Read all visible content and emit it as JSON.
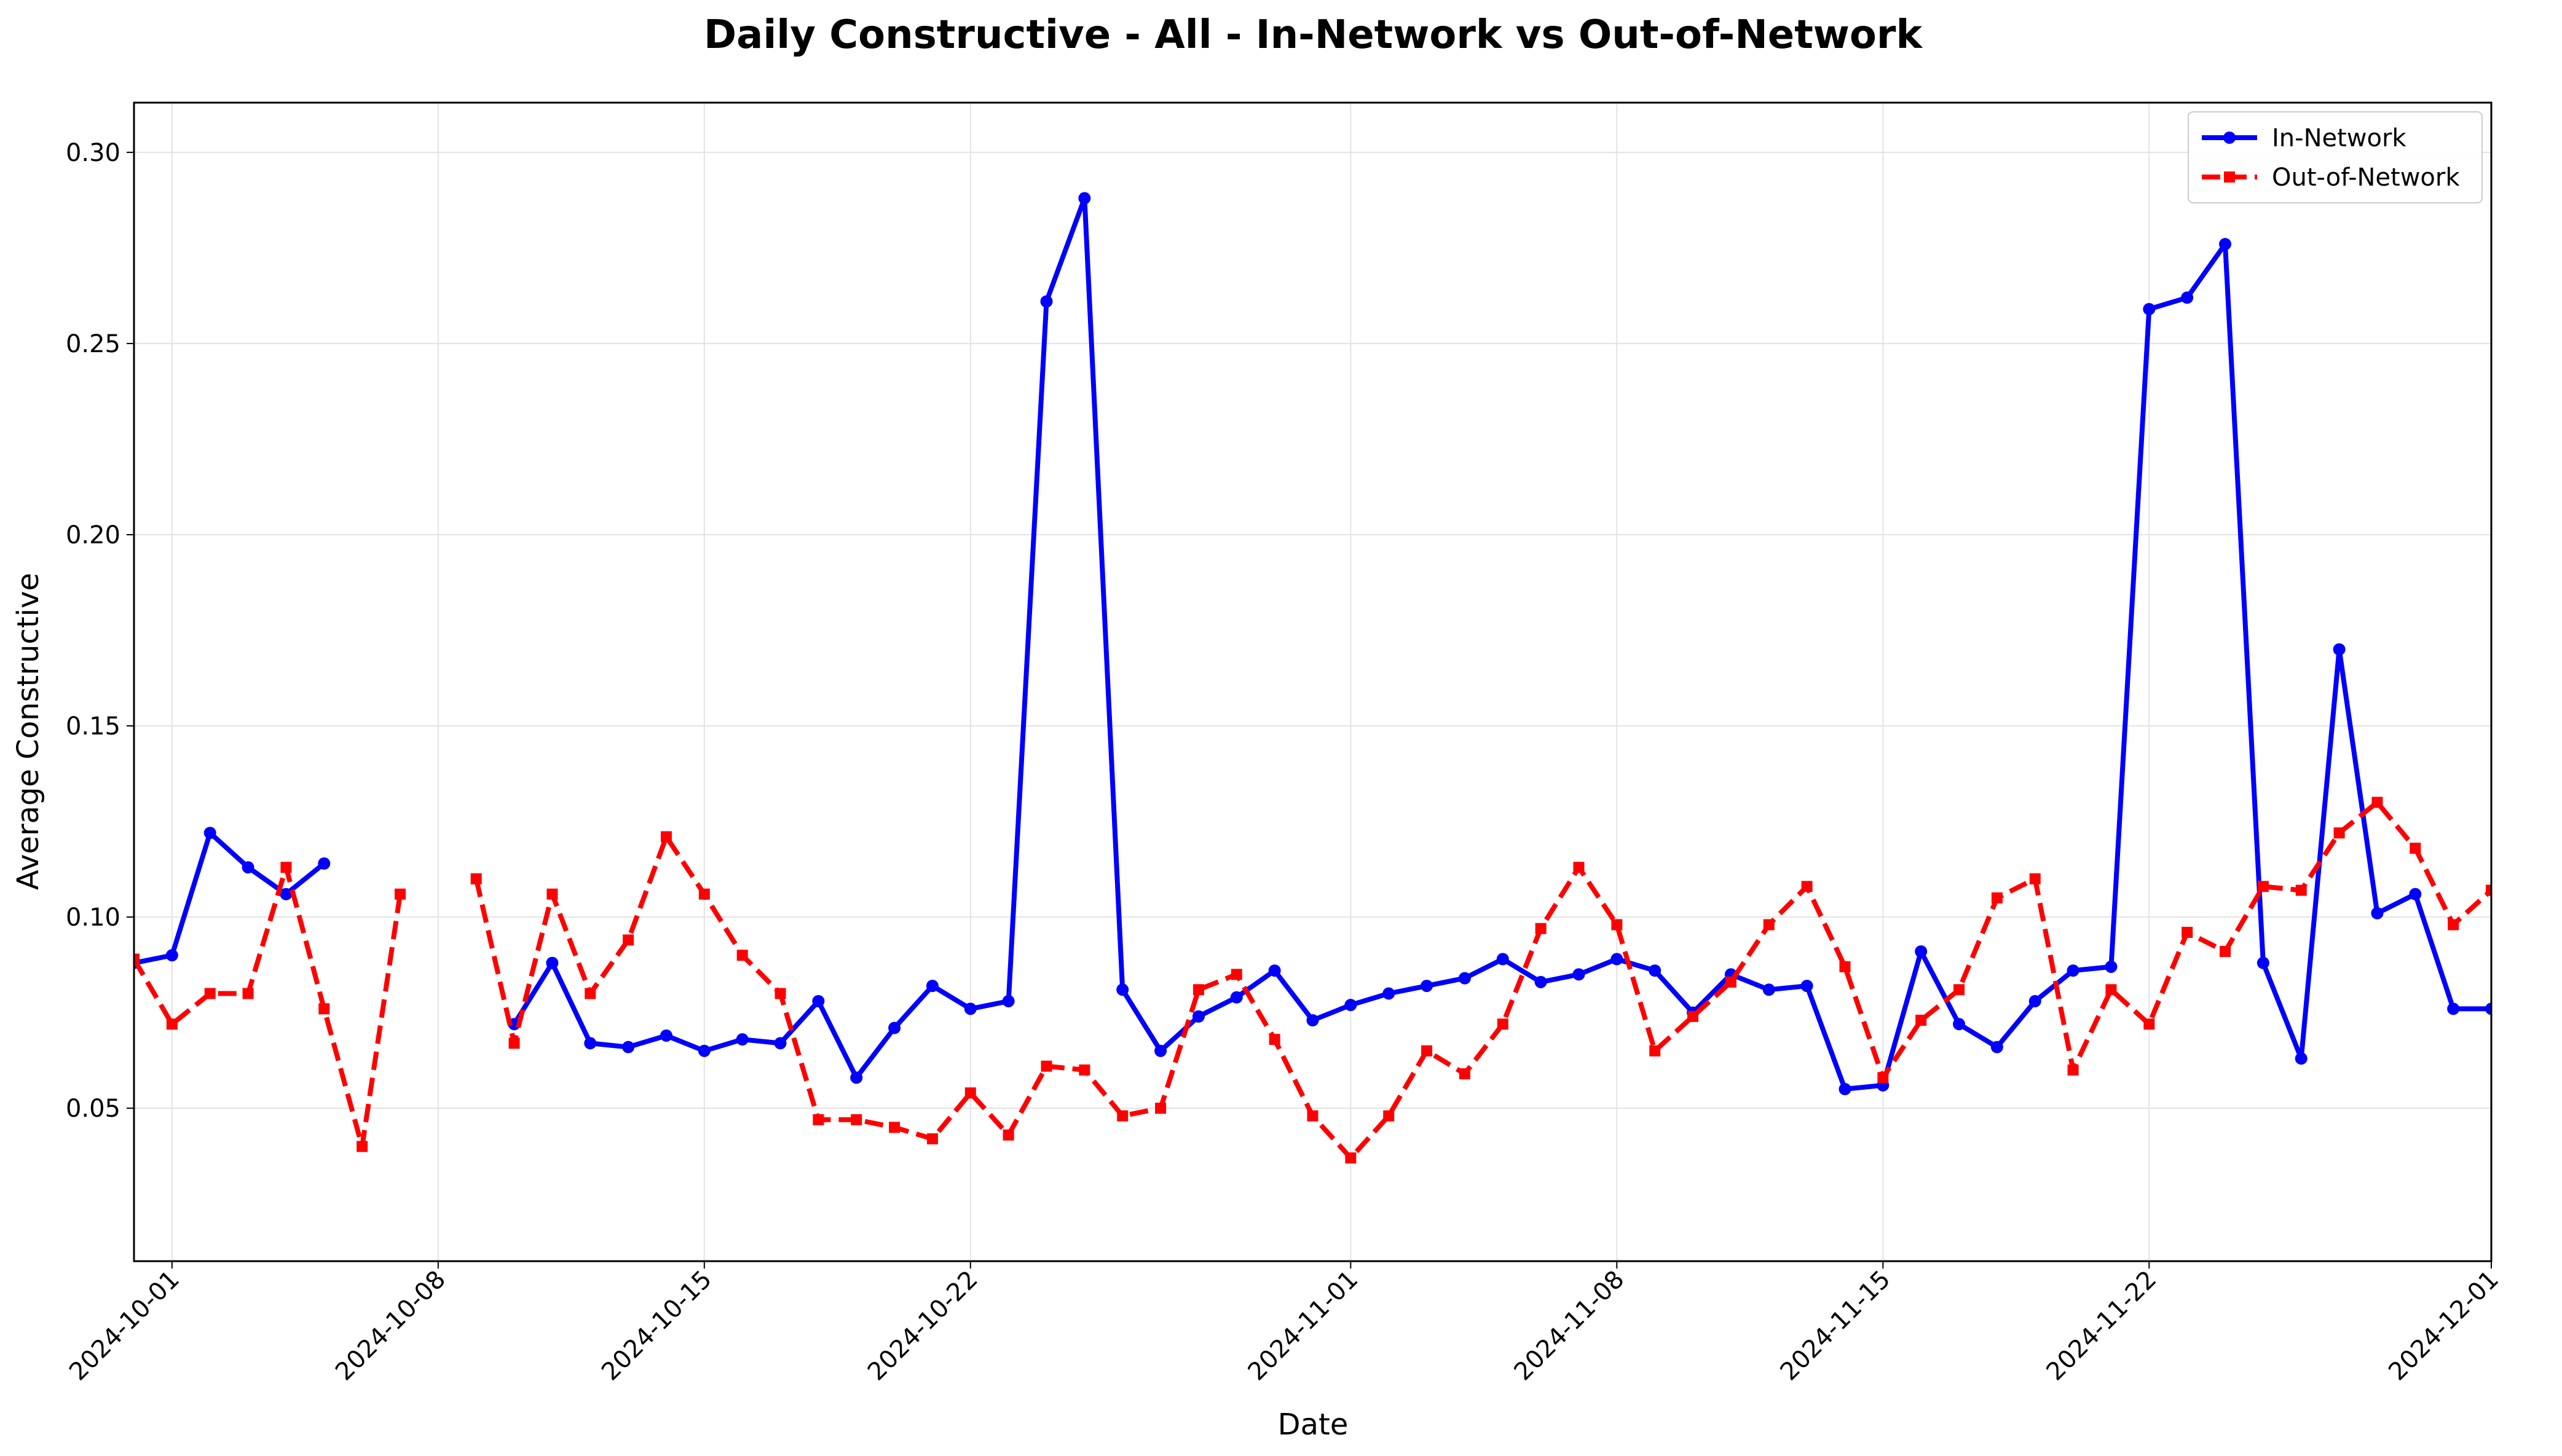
{
  "chart_data": {
    "type": "line",
    "title": "Daily Constructive - All - In-Network vs Out-of-Network",
    "xlabel": "Date",
    "ylabel": "Average Constructive",
    "x_start": "2024-09-30",
    "xlim": [
      "2024-09-30",
      "2024-12-01"
    ],
    "ylim": [
      0.01,
      0.313
    ],
    "xticks": [
      "2024-10-01",
      "2024-10-08",
      "2024-10-15",
      "2024-10-22",
      "2024-11-01",
      "2024-11-08",
      "2024-11-15",
      "2024-11-22",
      "2024-12-01"
    ],
    "yticks": [
      "0.05",
      "0.10",
      "0.15",
      "0.20",
      "0.25",
      "0.30"
    ],
    "grid": true,
    "legend_position": "top-right",
    "series": [
      {
        "name": "In-Network",
        "color": "#0000ff",
        "style": "solid",
        "marker": "circle",
        "values": [
          0.088,
          0.09,
          0.122,
          0.113,
          0.106,
          0.114,
          null,
          null,
          null,
          null,
          0.072,
          0.088,
          0.067,
          0.066,
          0.069,
          0.065,
          0.068,
          0.067,
          0.078,
          0.058,
          0.071,
          0.082,
          0.076,
          0.078,
          0.261,
          0.288,
          0.081,
          0.065,
          0.074,
          0.079,
          0.086,
          0.073,
          0.077,
          0.08,
          0.082,
          0.084,
          0.089,
          0.083,
          0.085,
          0.089,
          0.086,
          0.075,
          0.085,
          0.081,
          0.082,
          0.055,
          0.056,
          0.091,
          0.072,
          0.066,
          0.078,
          0.086,
          0.087,
          0.259,
          0.262,
          0.276,
          0.088,
          0.063,
          0.17,
          0.101,
          0.106,
          0.076,
          0.076
        ]
      },
      {
        "name": "Out-of-Network",
        "color": "#ff0000",
        "style": "dashed",
        "marker": "square",
        "values": [
          0.089,
          0.072,
          0.08,
          0.08,
          0.113,
          0.076,
          0.04,
          0.106,
          null,
          0.11,
          0.067,
          0.106,
          0.08,
          0.094,
          0.121,
          0.106,
          0.09,
          0.08,
          0.047,
          0.047,
          0.045,
          0.042,
          0.054,
          0.043,
          0.061,
          0.06,
          0.048,
          0.05,
          0.081,
          0.085,
          0.068,
          0.048,
          0.037,
          0.048,
          0.065,
          0.059,
          0.072,
          0.097,
          0.113,
          0.098,
          0.065,
          0.074,
          0.083,
          0.098,
          0.108,
          0.087,
          0.058,
          0.073,
          0.081,
          0.105,
          0.11,
          0.06,
          0.081,
          0.072,
          0.096,
          0.091,
          0.108,
          0.107,
          0.122,
          0.13,
          0.118,
          0.098,
          0.107
        ]
      }
    ]
  }
}
